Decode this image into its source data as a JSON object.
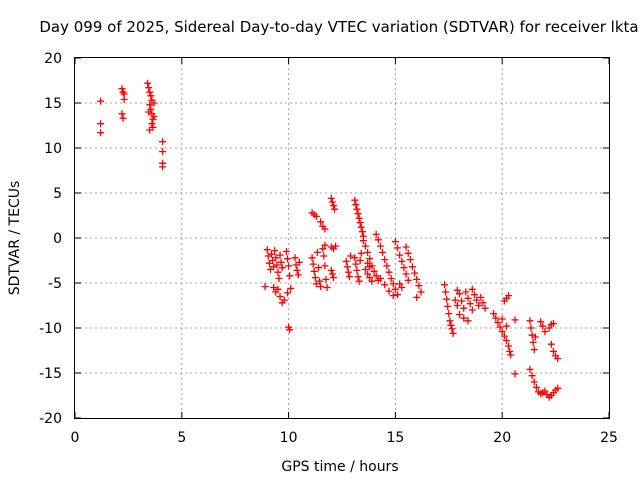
{
  "chart_data": {
    "type": "scatter",
    "title": "Day 099 of 2025, Sidereal Day-to-day VTEC variation (SDTVAR) for receiver lkta",
    "xlabel": "GPS time / hours",
    "ylabel": "SDTVAR / TECUs",
    "xlim": [
      0,
      25
    ],
    "ylim": [
      -20,
      20
    ],
    "xticks": [
      0,
      5,
      10,
      15,
      20,
      25
    ],
    "yticks": [
      -20,
      -15,
      -10,
      -5,
      0,
      5,
      10,
      15,
      20
    ],
    "grid": true,
    "marker": "+",
    "color": "#ff0000",
    "series": [
      {
        "name": "SDTVAR",
        "points": [
          [
            1.2,
            15.2
          ],
          [
            1.2,
            12.7
          ],
          [
            1.2,
            11.7
          ],
          [
            2.2,
            16.6
          ],
          [
            2.25,
            16.2
          ],
          [
            2.3,
            15.4
          ],
          [
            2.2,
            13.8
          ],
          [
            2.25,
            13.3
          ],
          [
            2.3,
            16.0
          ],
          [
            3.4,
            17.2
          ],
          [
            3.45,
            16.7
          ],
          [
            3.5,
            16.2
          ],
          [
            3.55,
            15.8
          ],
          [
            3.6,
            15.3
          ],
          [
            3.5,
            14.8
          ],
          [
            3.55,
            14.3
          ],
          [
            3.6,
            13.8
          ],
          [
            3.65,
            13.2
          ],
          [
            3.6,
            12.7
          ],
          [
            3.65,
            12.3
          ],
          [
            3.7,
            15.0
          ],
          [
            3.7,
            13.5
          ],
          [
            3.45,
            14.0
          ],
          [
            3.5,
            12.0
          ],
          [
            4.1,
            10.7
          ],
          [
            4.1,
            9.6
          ],
          [
            4.1,
            8.3
          ],
          [
            4.1,
            7.9
          ],
          [
            8.9,
            -5.4
          ],
          [
            9.0,
            -1.3
          ],
          [
            9.05,
            -2.0
          ],
          [
            9.1,
            -2.8
          ],
          [
            9.15,
            -3.5
          ],
          [
            9.2,
            -1.8
          ],
          [
            9.25,
            -2.5
          ],
          [
            9.3,
            -3.2
          ],
          [
            9.35,
            -1.4
          ],
          [
            9.4,
            -2.2
          ],
          [
            9.45,
            -3.0
          ],
          [
            9.5,
            -3.8
          ],
          [
            9.55,
            -4.5
          ],
          [
            9.6,
            -1.9
          ],
          [
            9.65,
            -2.7
          ],
          [
            9.7,
            -3.3
          ],
          [
            9.3,
            -5.5
          ],
          [
            9.4,
            -6.0
          ],
          [
            9.5,
            -5.7
          ],
          [
            9.6,
            -6.5
          ],
          [
            9.7,
            -7.2
          ],
          [
            9.8,
            -6.9
          ],
          [
            9.9,
            -1.5
          ],
          [
            9.95,
            -2.3
          ],
          [
            10.0,
            -3.1
          ],
          [
            10.05,
            -4.2
          ],
          [
            10.1,
            -5.6
          ],
          [
            9.95,
            -6.1
          ],
          [
            10.0,
            -9.9
          ],
          [
            10.05,
            -10.2
          ],
          [
            10.3,
            -2.2
          ],
          [
            10.35,
            -3.0
          ],
          [
            10.4,
            -3.6
          ],
          [
            10.45,
            -4.1
          ],
          [
            10.5,
            -2.7
          ],
          [
            11.1,
            -2.2
          ],
          [
            11.15,
            -2.9
          ],
          [
            11.2,
            -3.7
          ],
          [
            11.25,
            -4.4
          ],
          [
            11.3,
            -5.1
          ],
          [
            11.35,
            -1.6
          ],
          [
            11.4,
            -3.3
          ],
          [
            11.45,
            -4.8
          ],
          [
            11.5,
            -5.4
          ],
          [
            11.6,
            -1.2
          ],
          [
            11.65,
            -2.0
          ],
          [
            11.7,
            -3.1
          ],
          [
            11.75,
            -4.6
          ],
          [
            11.8,
            -5.5
          ],
          [
            11.1,
            2.8
          ],
          [
            11.2,
            2.6
          ],
          [
            11.3,
            2.4
          ],
          [
            11.5,
            1.8
          ],
          [
            11.6,
            1.3
          ],
          [
            11.7,
            1.0
          ],
          [
            11.7,
            -0.8
          ],
          [
            12.0,
            4.4
          ],
          [
            12.05,
            4.0
          ],
          [
            12.1,
            3.6
          ],
          [
            12.15,
            3.2
          ],
          [
            12.0,
            -1.0
          ],
          [
            12.1,
            -1.2
          ],
          [
            12.2,
            -0.9
          ],
          [
            12.0,
            -3.6
          ],
          [
            12.05,
            -4.0
          ],
          [
            12.1,
            -4.4
          ],
          [
            12.7,
            -2.6
          ],
          [
            12.75,
            -3.2
          ],
          [
            12.8,
            -3.8
          ],
          [
            12.85,
            -4.3
          ],
          [
            12.9,
            -2.0
          ],
          [
            13.1,
            -2.2
          ],
          [
            13.15,
            -2.9
          ],
          [
            13.2,
            -3.6
          ],
          [
            13.25,
            -4.3
          ],
          [
            13.3,
            -4.8
          ],
          [
            13.35,
            -2.5
          ],
          [
            13.4,
            -1.7
          ],
          [
            13.1,
            4.2
          ],
          [
            13.15,
            3.7
          ],
          [
            13.2,
            3.2
          ],
          [
            13.25,
            2.7
          ],
          [
            13.3,
            2.2
          ],
          [
            13.35,
            1.7
          ],
          [
            13.4,
            1.2
          ],
          [
            13.45,
            0.7
          ],
          [
            13.5,
            0.2
          ],
          [
            13.5,
            -0.3
          ],
          [
            13.6,
            -0.9
          ],
          [
            13.7,
            -1.6
          ],
          [
            13.8,
            -2.3
          ],
          [
            13.9,
            -3.1
          ],
          [
            14.0,
            -3.7
          ],
          [
            14.1,
            -4.2
          ],
          [
            14.2,
            -4.7
          ],
          [
            13.6,
            -3.5
          ],
          [
            13.7,
            -4.0
          ],
          [
            13.8,
            -4.4
          ],
          [
            13.9,
            -4.8
          ],
          [
            13.7,
            -2.8
          ],
          [
            13.8,
            -3.2
          ],
          [
            14.1,
            0.4
          ],
          [
            14.2,
            -0.2
          ],
          [
            14.3,
            -0.9
          ],
          [
            14.4,
            -1.6
          ],
          [
            14.5,
            -2.4
          ],
          [
            14.6,
            -3.1
          ],
          [
            14.7,
            -3.8
          ],
          [
            14.8,
            -4.5
          ],
          [
            14.9,
            -5.1
          ],
          [
            15.0,
            -5.7
          ],
          [
            15.1,
            -6.3
          ],
          [
            14.3,
            -4.5
          ],
          [
            14.5,
            -5.2
          ],
          [
            14.7,
            -5.9
          ],
          [
            14.9,
            -6.4
          ],
          [
            15.0,
            -0.4
          ],
          [
            15.1,
            -1.1
          ],
          [
            15.2,
            -1.9
          ],
          [
            15.3,
            -2.6
          ],
          [
            15.4,
            -3.3
          ],
          [
            15.5,
            -4.0
          ],
          [
            15.6,
            -4.7
          ],
          [
            15.2,
            -5.1
          ],
          [
            15.3,
            -5.5
          ],
          [
            15.5,
            -1.0
          ],
          [
            15.6,
            -1.7
          ],
          [
            15.7,
            -2.4
          ],
          [
            15.8,
            -3.2
          ],
          [
            15.9,
            -3.9
          ],
          [
            16.0,
            -4.6
          ],
          [
            16.1,
            -5.3
          ],
          [
            16.2,
            -6.0
          ],
          [
            16.0,
            -6.6
          ],
          [
            17.3,
            -5.2
          ],
          [
            17.35,
            -6.0
          ],
          [
            17.4,
            -6.8
          ],
          [
            17.45,
            -7.6
          ],
          [
            17.5,
            -8.4
          ],
          [
            17.55,
            -9.2
          ],
          [
            17.6,
            -9.7
          ],
          [
            17.65,
            -10.1
          ],
          [
            17.7,
            -10.6
          ],
          [
            17.8,
            -6.9
          ],
          [
            17.9,
            -7.5
          ],
          [
            18.0,
            -6.2
          ],
          [
            18.1,
            -7.0
          ],
          [
            18.2,
            -7.8
          ],
          [
            18.3,
            -6.0
          ],
          [
            18.4,
            -6.7
          ],
          [
            18.5,
            -7.3
          ],
          [
            18.6,
            -8.0
          ],
          [
            18.7,
            -6.3
          ],
          [
            18.8,
            -6.9
          ],
          [
            18.9,
            -7.5
          ],
          [
            19.0,
            -6.6
          ],
          [
            19.1,
            -7.2
          ],
          [
            19.2,
            -7.8
          ],
          [
            18.0,
            -8.5
          ],
          [
            18.2,
            -8.9
          ],
          [
            18.4,
            -9.2
          ],
          [
            17.9,
            -5.8
          ],
          [
            18.6,
            -5.7
          ],
          [
            19.6,
            -8.4
          ],
          [
            19.7,
            -8.9
          ],
          [
            19.8,
            -9.4
          ],
          [
            19.9,
            -9.9
          ],
          [
            20.0,
            -10.4
          ],
          [
            20.1,
            -10.9
          ],
          [
            20.2,
            -11.4
          ],
          [
            20.3,
            -12.0
          ],
          [
            20.35,
            -12.6
          ],
          [
            20.4,
            -13.0
          ],
          [
            20.0,
            -9.0
          ],
          [
            20.2,
            -9.8
          ],
          [
            20.1,
            -7.0
          ],
          [
            20.2,
            -6.7
          ],
          [
            20.3,
            -6.4
          ],
          [
            20.6,
            -9.1
          ],
          [
            20.6,
            -15.1
          ],
          [
            21.3,
            -9.2
          ],
          [
            21.35,
            -10.0
          ],
          [
            21.4,
            -10.8
          ],
          [
            21.45,
            -11.6
          ],
          [
            21.5,
            -12.4
          ],
          [
            21.55,
            -11.0
          ],
          [
            21.3,
            -14.6
          ],
          [
            21.4,
            -15.3
          ],
          [
            21.5,
            -16.0
          ],
          [
            21.6,
            -16.6
          ],
          [
            21.7,
            -17.1
          ],
          [
            21.8,
            -17.3
          ],
          [
            21.9,
            -17.2
          ],
          [
            22.0,
            -17.0
          ],
          [
            21.8,
            -9.3
          ],
          [
            21.9,
            -9.8
          ],
          [
            22.0,
            -10.4
          ],
          [
            22.2,
            -10.0
          ],
          [
            22.3,
            -9.6
          ],
          [
            22.4,
            -9.5
          ],
          [
            22.3,
            -11.8
          ],
          [
            22.4,
            -12.6
          ],
          [
            22.5,
            -13.1
          ],
          [
            22.6,
            -13.4
          ],
          [
            22.1,
            -17.4
          ],
          [
            22.2,
            -17.7
          ],
          [
            22.3,
            -17.5
          ],
          [
            22.4,
            -17.2
          ],
          [
            22.5,
            -16.9
          ],
          [
            22.6,
            -16.7
          ]
        ]
      }
    ]
  }
}
